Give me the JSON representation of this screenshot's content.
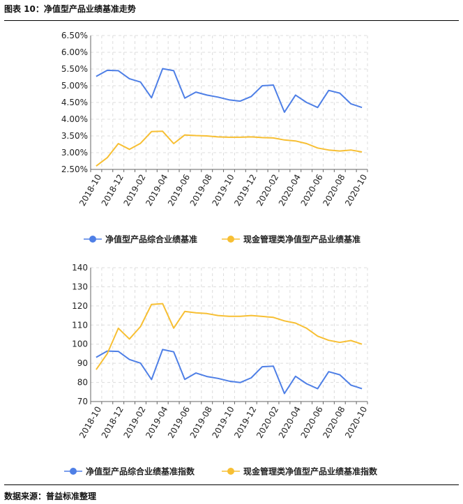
{
  "title": "图表 10：净值型产品业绩基准走势",
  "source": "数据来源：普益标准整理",
  "chart_data": [
    {
      "type": "line",
      "categories": [
        "2018-10",
        "2018-11",
        "2018-12",
        "2019-01",
        "2019-02",
        "2019-03",
        "2019-04",
        "2019-05",
        "2019-06",
        "2019-07",
        "2019-08",
        "2019-09",
        "2019-10",
        "2019-11",
        "2019-12",
        "2020-01",
        "2020-02",
        "2020-03",
        "2020-04",
        "2020-05",
        "2020-06",
        "2020-07",
        "2020-08",
        "2020-09",
        "2020-10"
      ],
      "tick_labels": [
        "2018-10",
        "2018-12",
        "2019-02",
        "2019-04",
        "2019-06",
        "2019-08",
        "2019-10",
        "2019-12",
        "2020-02",
        "2020-04",
        "2020-06",
        "2020-08",
        "2020-10"
      ],
      "yticks": [
        "6.50%",
        "6.00%",
        "5.50%",
        "5.00%",
        "4.50%",
        "4.00%",
        "3.50%",
        "3.00%",
        "2.50%"
      ],
      "ylim": [
        2.5,
        6.5
      ],
      "grid": true,
      "legend_position": "bottom",
      "series": [
        {
          "name": "净值型产品综合业绩基准",
          "color": "#4e7fe6",
          "values": [
            5.28,
            5.46,
            5.45,
            5.21,
            5.11,
            4.64,
            5.51,
            5.45,
            4.63,
            4.81,
            4.72,
            4.66,
            4.58,
            4.54,
            4.68,
            5.0,
            5.02,
            4.21,
            4.72,
            4.5,
            4.35,
            4.86,
            4.78,
            4.46,
            4.35
          ]
        },
        {
          "name": "现金管理类净值型产品业绩基准",
          "color": "#f7bf33",
          "values": [
            2.6,
            2.85,
            3.27,
            3.1,
            3.28,
            3.63,
            3.64,
            3.27,
            3.53,
            3.51,
            3.5,
            3.47,
            3.46,
            3.46,
            3.47,
            3.45,
            3.44,
            3.38,
            3.35,
            3.27,
            3.14,
            3.08,
            3.05,
            3.08,
            3.02
          ]
        }
      ]
    },
    {
      "type": "line",
      "categories": [
        "2018-10",
        "2018-11",
        "2018-12",
        "2019-01",
        "2019-02",
        "2019-03",
        "2019-04",
        "2019-05",
        "2019-06",
        "2019-07",
        "2019-08",
        "2019-09",
        "2019-10",
        "2019-11",
        "2019-12",
        "2020-01",
        "2020-02",
        "2020-03",
        "2020-04",
        "2020-05",
        "2020-06",
        "2020-07",
        "2020-08",
        "2020-09",
        "2020-10"
      ],
      "tick_labels": [
        "2018-10",
        "2018-12",
        "2019-02",
        "2019-04",
        "2019-06",
        "2019-08",
        "2019-10",
        "2019-12",
        "2020-02",
        "2020-04",
        "2020-06",
        "2020-08",
        "2020-10"
      ],
      "yticks": [
        "140",
        "130",
        "120",
        "110",
        "100",
        "90",
        "80",
        "70"
      ],
      "ylim": [
        70,
        140
      ],
      "grid": true,
      "legend_position": "bottom",
      "series": [
        {
          "name": "净值型产品综合业绩基准指数",
          "color": "#4e7fe6",
          "values": [
            93.1,
            96.4,
            96.2,
            92.0,
            90.1,
            81.5,
            97.2,
            96.0,
            81.6,
            84.9,
            83.1,
            82.1,
            80.7,
            79.9,
            82.4,
            88.2,
            88.5,
            74.2,
            83.2,
            79.3,
            76.7,
            85.6,
            84.0,
            78.6,
            76.7
          ]
        },
        {
          "name": "现金管理类净值型产品业绩基准指数",
          "color": "#f7bf33",
          "values": [
            86.7,
            95.0,
            108.3,
            102.7,
            109.2,
            120.8,
            121.2,
            108.4,
            117.1,
            116.4,
            116.0,
            115.0,
            114.6,
            114.6,
            115.0,
            114.5,
            114.0,
            112.2,
            111.0,
            108.3,
            104.2,
            102.0,
            100.9,
            101.9,
            100.0
          ]
        }
      ]
    }
  ]
}
